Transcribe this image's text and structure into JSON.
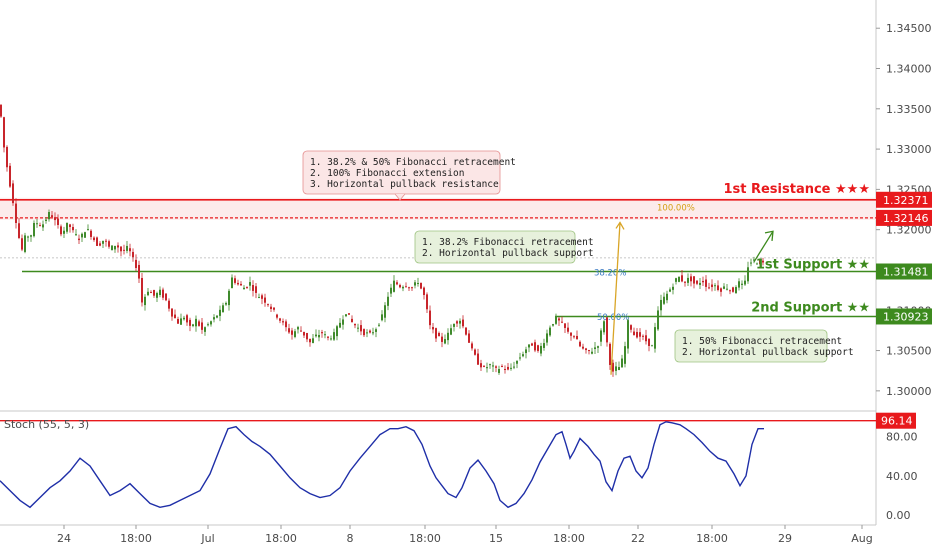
{
  "chart_data": [
    {
      "type": "candlestick",
      "symbol_pair_levels": true,
      "y_ticks": [
        "1.34500",
        "1.34000",
        "1.33500",
        "1.33000",
        "1.32500",
        "1.32000",
        "1.31500",
        "1.31000",
        "1.30500",
        "1.30000"
      ],
      "ylim": [
        1.2975,
        1.3485
      ],
      "x_ticks": [
        "24",
        "18:00",
        "Jul",
        "18:00",
        "8",
        "18:00",
        "15",
        "18:00",
        "22",
        "18:00",
        "29",
        "Aug"
      ],
      "price_path": [
        [
          0,
          1.3355
        ],
        [
          3,
          1.331
        ],
        [
          8,
          1.327
        ],
        [
          13,
          1.3235
        ],
        [
          18,
          1.3195
        ],
        [
          22,
          1.3175
        ],
        [
          26,
          1.3195
        ],
        [
          30,
          1.319
        ],
        [
          35,
          1.321
        ],
        [
          42,
          1.3205
        ],
        [
          50,
          1.3222
        ],
        [
          56,
          1.3208
        ],
        [
          62,
          1.3195
        ],
        [
          68,
          1.3208
        ],
        [
          74,
          1.3195
        ],
        [
          80,
          1.3188
        ],
        [
          86,
          1.3202
        ],
        [
          92,
          1.3192
        ],
        [
          98,
          1.318
        ],
        [
          104,
          1.3188
        ],
        [
          110,
          1.3176
        ],
        [
          116,
          1.3182
        ],
        [
          122,
          1.3172
        ],
        [
          128,
          1.3178
        ],
        [
          134,
          1.316
        ],
        [
          138,
          1.315
        ],
        [
          142,
          1.311
        ],
        [
          148,
          1.3125
        ],
        [
          154,
          1.3118
        ],
        [
          160,
          1.3123
        ],
        [
          166,
          1.3112
        ],
        [
          172,
          1.3095
        ],
        [
          178,
          1.3085
        ],
        [
          184,
          1.3092
        ],
        [
          190,
          1.3078
        ],
        [
          196,
          1.3088
        ],
        [
          202,
          1.3075
        ],
        [
          208,
          1.3082
        ],
        [
          214,
          1.309
        ],
        [
          220,
          1.3098
        ],
        [
          226,
          1.311
        ],
        [
          232,
          1.314
        ],
        [
          238,
          1.3132
        ],
        [
          244,
          1.3128
        ],
        [
          250,
          1.3134
        ],
        [
          256,
          1.312
        ],
        [
          262,
          1.3115
        ],
        [
          268,
          1.3108
        ],
        [
          274,
          1.3098
        ],
        [
          280,
          1.3088
        ],
        [
          286,
          1.3078
        ],
        [
          292,
          1.307
        ],
        [
          298,
          1.3078
        ],
        [
          304,
          1.307
        ],
        [
          310,
          1.306
        ],
        [
          316,
          1.3068
        ],
        [
          322,
          1.3072
        ],
        [
          328,
          1.3065
        ],
        [
          334,
          1.307
        ],
        [
          340,
          1.3085
        ],
        [
          346,
          1.3098
        ],
        [
          352,
          1.3085
        ],
        [
          358,
          1.3078
        ],
        [
          364,
          1.3072
        ],
        [
          370,
          1.307
        ],
        [
          376,
          1.3078
        ],
        [
          382,
          1.3092
        ],
        [
          388,
          1.3118
        ],
        [
          394,
          1.3135
        ],
        [
          400,
          1.313
        ],
        [
          406,
          1.3132
        ],
        [
          412,
          1.3128
        ],
        [
          418,
          1.3136
        ],
        [
          424,
          1.3118
        ],
        [
          430,
          1.308
        ],
        [
          436,
          1.3068
        ],
        [
          442,
          1.3062
        ],
        [
          448,
          1.307
        ],
        [
          454,
          1.3085
        ],
        [
          460,
          1.3088
        ],
        [
          466,
          1.3072
        ],
        [
          472,
          1.305
        ],
        [
          478,
          1.3035
        ],
        [
          484,
          1.3028
        ],
        [
          490,
          1.3032
        ],
        [
          496,
          1.3026
        ],
        [
          502,
          1.303
        ],
        [
          508,
          1.3025
        ],
        [
          514,
          1.3032
        ],
        [
          520,
          1.3042
        ],
        [
          526,
          1.3052
        ],
        [
          532,
          1.3058
        ],
        [
          538,
          1.3048
        ],
        [
          544,
          1.3062
        ],
        [
          550,
          1.308
        ],
        [
          556,
          1.309
        ],
        [
          562,
          1.3082
        ],
        [
          568,
          1.3072
        ],
        [
          574,
          1.3068
        ],
        [
          580,
          1.3055
        ],
        [
          586,
          1.3048
        ],
        [
          592,
          1.305
        ],
        [
          598,
          1.3058
        ],
        [
          604,
          1.3088
        ],
        [
          608,
          1.305
        ],
        [
          612,
          1.302
        ],
        [
          616,
          1.3028
        ],
        [
          620,
          1.303
        ],
        [
          624,
          1.3045
        ],
        [
          628,
          1.3085
        ],
        [
          634,
          1.307
        ],
        [
          640,
          1.3068
        ],
        [
          646,
          1.3062
        ],
        [
          652,
          1.3055
        ],
        [
          656,
          1.3085
        ],
        [
          660,
          1.311
        ],
        [
          666,
          1.3118
        ],
        [
          672,
          1.313
        ],
        [
          678,
          1.3142
        ],
        [
          684,
          1.3135
        ],
        [
          690,
          1.314
        ],
        [
          696,
          1.313
        ],
        [
          702,
          1.3138
        ],
        [
          708,
          1.3128
        ],
        [
          714,
          1.3132
        ],
        [
          720,
          1.3125
        ],
        [
          726,
          1.313
        ],
        [
          732,
          1.3122
        ],
        [
          738,
          1.3135
        ],
        [
          744,
          1.3128
        ],
        [
          748,
          1.3155
        ],
        [
          752,
          1.3162
        ],
        [
          758,
          1.316
        ],
        [
          764,
          1.3158
        ]
      ],
      "levels": [
        {
          "name": "resistance",
          "value": 1.32371,
          "label": "1.32371",
          "title": "1st Resistance ★★★",
          "color": "#e8191c"
        },
        {
          "name": "target",
          "value": 1.32146,
          "label": "1.32146",
          "color": "#e8191c"
        },
        {
          "name": "first-support",
          "value": 1.31481,
          "label": "1.31481",
          "title": "1st Support ★★",
          "color": "#3d8a1e"
        },
        {
          "name": "second-support",
          "value": 1.30923,
          "label": "1.30923",
          "title": "2nd Support ★★",
          "color": "#3d8a1e"
        }
      ],
      "fib_labels": {
        "extension": "100.00%",
        "retracement_382": "38.20%",
        "retracement_50": "50.00%"
      },
      "notes": {
        "resistance": [
          "1. 38.2% & 50% Fibonacci retracement",
          "2. 100% Fibonacci extension",
          "3. Horizontal pullback resistance"
        ],
        "first_support": [
          "1. 38.2% Fibonacci retracement",
          "2. Horizontal pullback support"
        ],
        "second_support": [
          "1. 50% Fibonacci retracement",
          "2. Horizontal pullback support"
        ]
      }
    },
    {
      "type": "line",
      "title": "Stoch (55, 5, 3)",
      "y_ticks": [
        "80.00",
        "40.00",
        "0.00"
      ],
      "ylim": [
        -10,
        105
      ],
      "level": {
        "value": 96.14,
        "label": "96.14",
        "color": "#e8191c"
      },
      "series_color": "#1f2fa8",
      "values": [
        [
          0,
          35
        ],
        [
          10,
          25
        ],
        [
          20,
          15
        ],
        [
          30,
          8
        ],
        [
          40,
          18
        ],
        [
          50,
          28
        ],
        [
          60,
          35
        ],
        [
          70,
          45
        ],
        [
          80,
          58
        ],
        [
          90,
          50
        ],
        [
          100,
          35
        ],
        [
          110,
          20
        ],
        [
          120,
          25
        ],
        [
          130,
          32
        ],
        [
          140,
          22
        ],
        [
          150,
          12
        ],
        [
          160,
          8
        ],
        [
          170,
          10
        ],
        [
          180,
          15
        ],
        [
          190,
          20
        ],
        [
          200,
          25
        ],
        [
          210,
          42
        ],
        [
          220,
          68
        ],
        [
          228,
          88
        ],
        [
          236,
          90
        ],
        [
          244,
          82
        ],
        [
          252,
          75
        ],
        [
          260,
          70
        ],
        [
          270,
          62
        ],
        [
          280,
          50
        ],
        [
          290,
          38
        ],
        [
          300,
          28
        ],
        [
          310,
          22
        ],
        [
          320,
          18
        ],
        [
          330,
          20
        ],
        [
          340,
          28
        ],
        [
          350,
          45
        ],
        [
          360,
          58
        ],
        [
          370,
          70
        ],
        [
          380,
          82
        ],
        [
          390,
          88
        ],
        [
          398,
          88
        ],
        [
          406,
          90
        ],
        [
          414,
          86
        ],
        [
          422,
          72
        ],
        [
          430,
          50
        ],
        [
          436,
          38
        ],
        [
          442,
          30
        ],
        [
          448,
          22
        ],
        [
          456,
          18
        ],
        [
          462,
          28
        ],
        [
          470,
          48
        ],
        [
          478,
          56
        ],
        [
          486,
          45
        ],
        [
          494,
          32
        ],
        [
          500,
          15
        ],
        [
          508,
          8
        ],
        [
          516,
          12
        ],
        [
          524,
          22
        ],
        [
          532,
          36
        ],
        [
          540,
          54
        ],
        [
          548,
          68
        ],
        [
          556,
          82
        ],
        [
          562,
          85
        ],
        [
          566,
          72
        ],
        [
          570,
          58
        ],
        [
          574,
          65
        ],
        [
          580,
          78
        ],
        [
          588,
          70
        ],
        [
          594,
          62
        ],
        [
          600,
          55
        ],
        [
          606,
          34
        ],
        [
          612,
          25
        ],
        [
          618,
          45
        ],
        [
          624,
          58
        ],
        [
          630,
          60
        ],
        [
          636,
          45
        ],
        [
          642,
          38
        ],
        [
          648,
          48
        ],
        [
          654,
          72
        ],
        [
          660,
          92
        ],
        [
          666,
          95
        ],
        [
          672,
          94
        ],
        [
          680,
          92
        ],
        [
          686,
          88
        ],
        [
          694,
          82
        ],
        [
          702,
          74
        ],
        [
          710,
          65
        ],
        [
          718,
          58
        ],
        [
          726,
          55
        ],
        [
          734,
          42
        ],
        [
          740,
          30
        ],
        [
          746,
          40
        ],
        [
          752,
          72
        ],
        [
          758,
          88
        ],
        [
          764,
          88
        ]
      ]
    }
  ]
}
